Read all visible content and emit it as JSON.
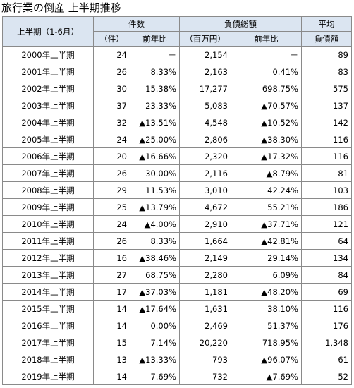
{
  "title": "旅行業の倒産 上半期推移",
  "header": {
    "period": "上半期（1-6月）",
    "count_group": "件数",
    "count_unit": "（件）",
    "count_yoy": "前年比",
    "debt_group": "負債総額",
    "debt_unit": "（百万円）",
    "debt_yoy": "前年比",
    "avg_top": "平均",
    "avg_bottom": "負債額"
  },
  "rows": [
    {
      "period": "2000年上半期",
      "count": "24",
      "count_yoy": "－",
      "debt": "2,154",
      "debt_yoy": "－",
      "avg": "89"
    },
    {
      "period": "2001年上半期",
      "count": "26",
      "count_yoy": "8.33%",
      "debt": "2,163",
      "debt_yoy": "0.41%",
      "avg": "83"
    },
    {
      "period": "2002年上半期",
      "count": "30",
      "count_yoy": "15.38%",
      "debt": "17,277",
      "debt_yoy": "698.75%",
      "avg": "575"
    },
    {
      "period": "2003年上半期",
      "count": "37",
      "count_yoy": "23.33%",
      "debt": "5,083",
      "debt_yoy": "▲70.57%",
      "avg": "137"
    },
    {
      "period": "2004年上半期",
      "count": "32",
      "count_yoy": "▲13.51%",
      "debt": "4,548",
      "debt_yoy": "▲10.52%",
      "avg": "142"
    },
    {
      "period": "2005年上半期",
      "count": "24",
      "count_yoy": "▲25.00%",
      "debt": "2,806",
      "debt_yoy": "▲38.30%",
      "avg": "116"
    },
    {
      "period": "2006年上半期",
      "count": "20",
      "count_yoy": "▲16.66%",
      "debt": "2,320",
      "debt_yoy": "▲17.32%",
      "avg": "116"
    },
    {
      "period": "2007年上半期",
      "count": "26",
      "count_yoy": "30.00%",
      "debt": "2,116",
      "debt_yoy": "▲8.79%",
      "avg": "81"
    },
    {
      "period": "2008年上半期",
      "count": "29",
      "count_yoy": "11.53%",
      "debt": "3,010",
      "debt_yoy": "42.24%",
      "avg": "103"
    },
    {
      "period": "2009年上半期",
      "count": "25",
      "count_yoy": "▲13.79%",
      "debt": "4,672",
      "debt_yoy": "55.21%",
      "avg": "186"
    },
    {
      "period": "2010年上半期",
      "count": "24",
      "count_yoy": "▲4.00%",
      "debt": "2,910",
      "debt_yoy": "▲37.71%",
      "avg": "121"
    },
    {
      "period": "2011年上半期",
      "count": "26",
      "count_yoy": "8.33%",
      "debt": "1,664",
      "debt_yoy": "▲42.81%",
      "avg": "64"
    },
    {
      "period": "2012年上半期",
      "count": "16",
      "count_yoy": "▲38.46%",
      "debt": "2,149",
      "debt_yoy": "29.14%",
      "avg": "134"
    },
    {
      "period": "2013年上半期",
      "count": "27",
      "count_yoy": "68.75%",
      "debt": "2,280",
      "debt_yoy": "6.09%",
      "avg": "84"
    },
    {
      "period": "2014年上半期",
      "count": "17",
      "count_yoy": "▲37.03%",
      "debt": "1,181",
      "debt_yoy": "▲48.20%",
      "avg": "69"
    },
    {
      "period": "2015年上半期",
      "count": "14",
      "count_yoy": "▲17.64%",
      "debt": "1,631",
      "debt_yoy": "38.10%",
      "avg": "116"
    },
    {
      "period": "2016年上半期",
      "count": "14",
      "count_yoy": "0.00%",
      "debt": "2,469",
      "debt_yoy": "51.37%",
      "avg": "176"
    },
    {
      "period": "2017年上半期",
      "count": "15",
      "count_yoy": "7.14%",
      "debt": "20,220",
      "debt_yoy": "718.95%",
      "avg": "1,348"
    },
    {
      "period": "2018年上半期",
      "count": "13",
      "count_yoy": "▲13.33%",
      "debt": "793",
      "debt_yoy": "▲96.07%",
      "avg": "61"
    },
    {
      "period": "2019年上半期",
      "count": "14",
      "count_yoy": "7.69%",
      "debt": "732",
      "debt_yoy": "▲7.69%",
      "avg": "52"
    }
  ]
}
